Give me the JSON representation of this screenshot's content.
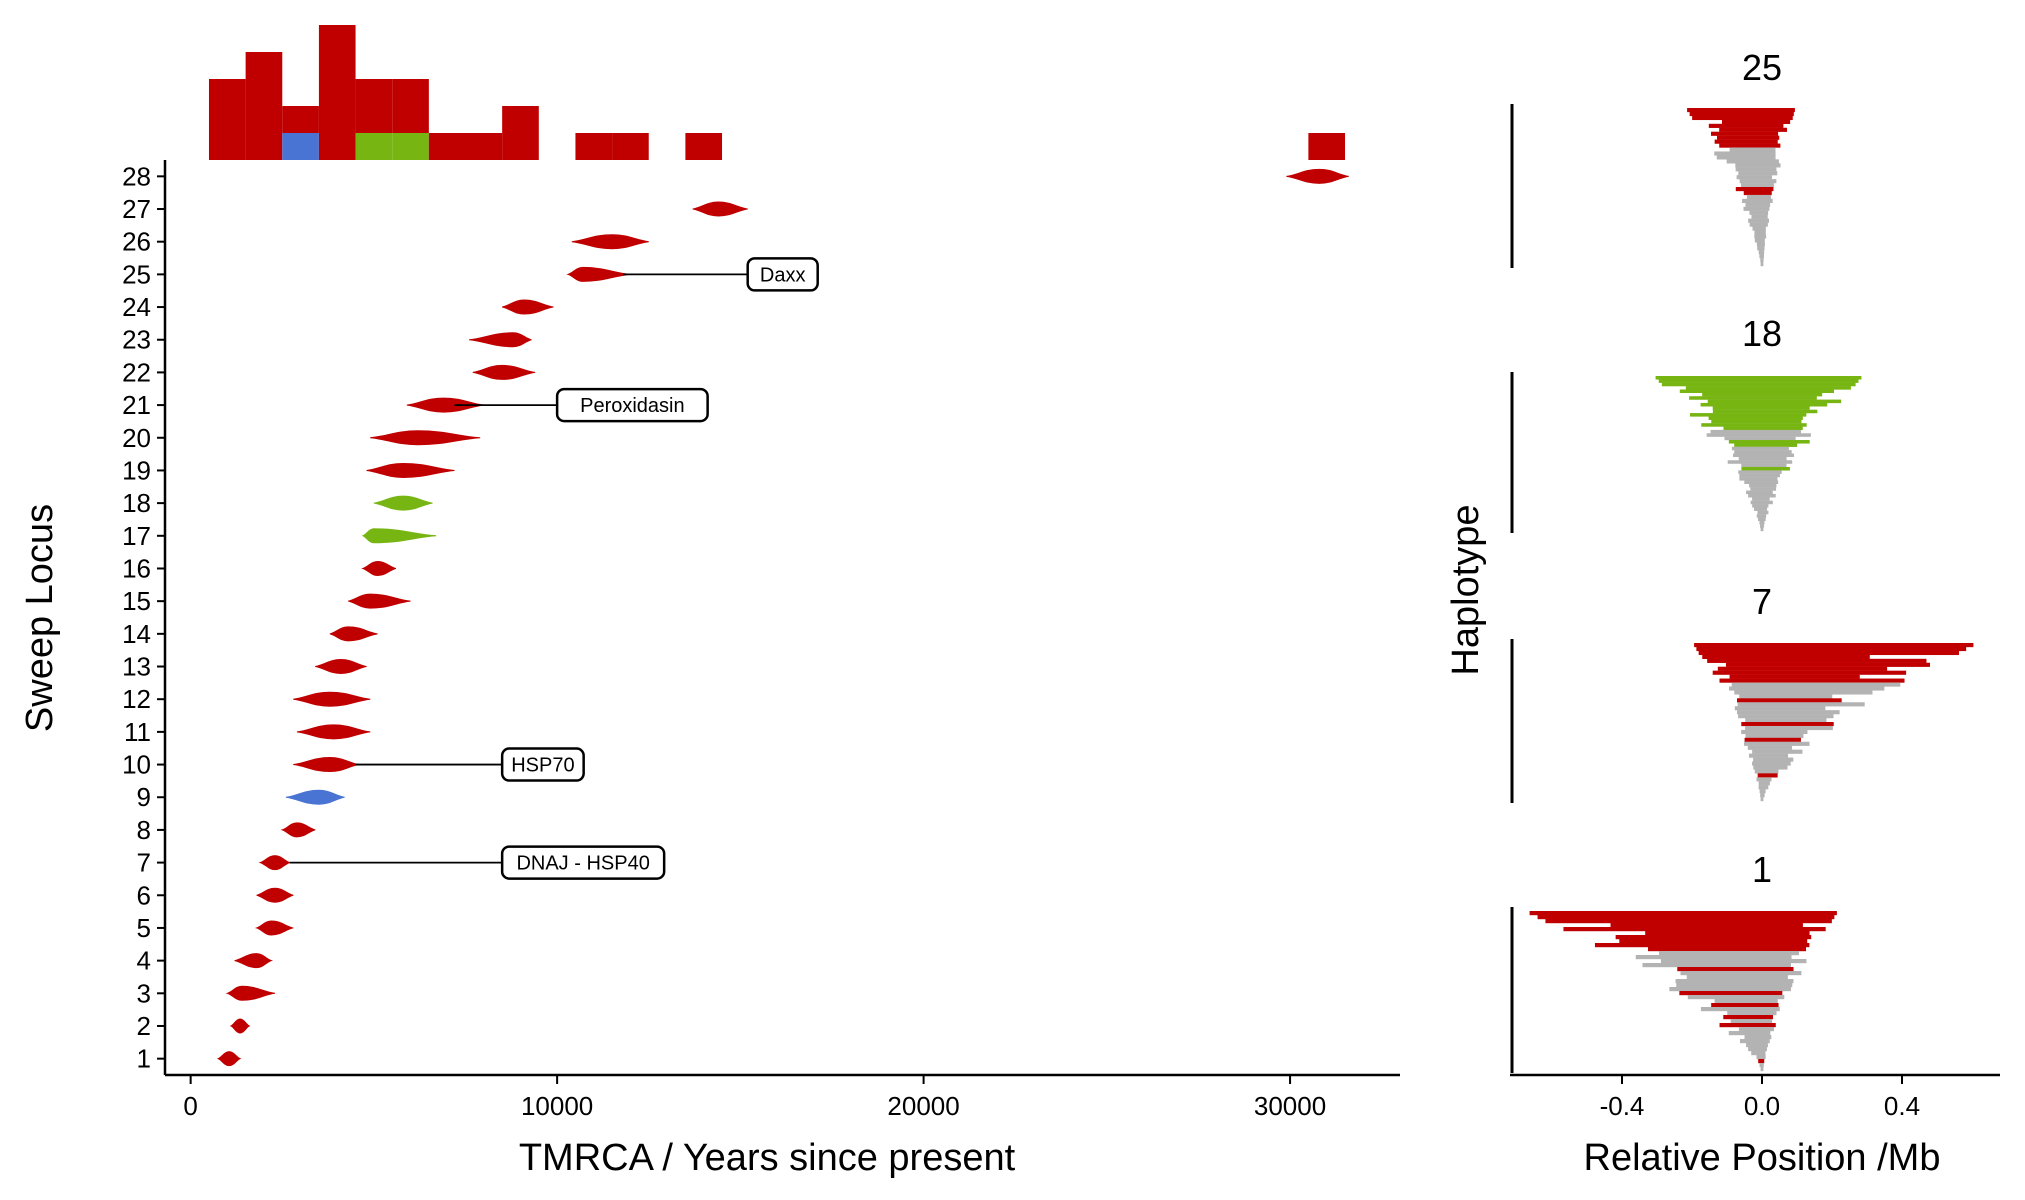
{
  "colors": {
    "red": "#c00000",
    "blue": "#4a74d4",
    "green": "#76b512",
    "grey": "#b3b3b3",
    "black": "#000000"
  },
  "chart_data": [
    {
      "type": "violin",
      "panel": "main",
      "xlabel": "TMRCA / Years since present",
      "ylabel": "Sweep Locus",
      "xlim": [
        -700,
        33000
      ],
      "ylim": [
        0.5,
        28.5
      ],
      "xticks": [
        0,
        10000,
        20000,
        30000
      ],
      "xtick_labels": [
        "0",
        "10000",
        "20000",
        "30000"
      ],
      "ytick_labels": [
        "1",
        "2",
        "3",
        "4",
        "5",
        "6",
        "7",
        "8",
        "9",
        "10",
        "11",
        "12",
        "13",
        "14",
        "15",
        "16",
        "17",
        "18",
        "19",
        "20",
        "21",
        "22",
        "23",
        "24",
        "25",
        "26",
        "27",
        "28"
      ],
      "grid": false,
      "loci": [
        {
          "locus": 1,
          "min": 750,
          "max": 1350,
          "peak": 1050,
          "color": "red"
        },
        {
          "locus": 2,
          "min": 1100,
          "max": 1600,
          "peak": 1350,
          "color": "red"
        },
        {
          "locus": 3,
          "min": 1000,
          "max": 2300,
          "peak": 1400,
          "color": "red"
        },
        {
          "locus": 4,
          "min": 1200,
          "max": 2200,
          "peak": 1800,
          "color": "red"
        },
        {
          "locus": 5,
          "min": 1800,
          "max": 2800,
          "peak": 2200,
          "color": "red"
        },
        {
          "locus": 6,
          "min": 1800,
          "max": 2800,
          "peak": 2300,
          "color": "red"
        },
        {
          "locus": 7,
          "min": 1900,
          "max": 2700,
          "peak": 2300,
          "color": "red"
        },
        {
          "locus": 8,
          "min": 2500,
          "max": 3400,
          "peak": 2900,
          "color": "red"
        },
        {
          "locus": 9,
          "min": 2600,
          "max": 4200,
          "peak": 3500,
          "color": "blue"
        },
        {
          "locus": 10,
          "min": 2800,
          "max": 4600,
          "peak": 3800,
          "color": "red"
        },
        {
          "locus": 11,
          "min": 2900,
          "max": 4900,
          "peak": 3900,
          "color": "red"
        },
        {
          "locus": 12,
          "min": 2800,
          "max": 4900,
          "peak": 3800,
          "color": "red"
        },
        {
          "locus": 13,
          "min": 3400,
          "max": 4800,
          "peak": 4100,
          "color": "red"
        },
        {
          "locus": 14,
          "min": 3800,
          "max": 5100,
          "peak": 4300,
          "color": "red"
        },
        {
          "locus": 15,
          "min": 4300,
          "max": 6000,
          "peak": 4900,
          "color": "red"
        },
        {
          "locus": 16,
          "min": 4700,
          "max": 5600,
          "peak": 5100,
          "color": "red"
        },
        {
          "locus": 17,
          "min": 4700,
          "max": 6700,
          "peak": 5000,
          "color": "green"
        },
        {
          "locus": 18,
          "min": 5000,
          "max": 6600,
          "peak": 5800,
          "color": "green"
        },
        {
          "locus": 19,
          "min": 4800,
          "max": 7200,
          "peak": 5800,
          "color": "red"
        },
        {
          "locus": 20,
          "min": 4900,
          "max": 7900,
          "peak": 6200,
          "color": "red"
        },
        {
          "locus": 21,
          "min": 5900,
          "max": 8000,
          "peak": 6900,
          "color": "red"
        },
        {
          "locus": 22,
          "min": 7700,
          "max": 9400,
          "peak": 8500,
          "color": "red"
        },
        {
          "locus": 23,
          "min": 7600,
          "max": 9300,
          "peak": 8800,
          "color": "red"
        },
        {
          "locus": 24,
          "min": 8500,
          "max": 9900,
          "peak": 9100,
          "color": "red"
        },
        {
          "locus": 25,
          "min": 10300,
          "max": 12000,
          "peak": 10700,
          "color": "red"
        },
        {
          "locus": 26,
          "min": 10400,
          "max": 12500,
          "peak": 11500,
          "color": "red"
        },
        {
          "locus": 27,
          "min": 13700,
          "max": 15200,
          "peak": 14400,
          "color": "red"
        },
        {
          "locus": 28,
          "min": 29900,
          "max": 31600,
          "peak": 30800,
          "color": "red"
        }
      ],
      "annotations": [
        {
          "text": "Daxx",
          "locus": 25,
          "x_from": 11800,
          "x_label": 15200
        },
        {
          "text": "Peroxidasin",
          "locus": 21,
          "x_from": 7200,
          "x_label": 10000
        },
        {
          "text": "HSP70",
          "locus": 10,
          "x_from": 4500,
          "x_label": 8500
        },
        {
          "text": "DNAJ - HSP40",
          "locus": 7,
          "x_from": 2700,
          "x_label": 8500
        }
      ]
    },
    {
      "type": "histogram",
      "panel": "top",
      "bin_width": 1000,
      "bins": [
        {
          "x0": 500,
          "count": 3,
          "color_counts": {
            "red": 3
          }
        },
        {
          "x0": 1500,
          "count": 4,
          "color_counts": {
            "red": 4
          }
        },
        {
          "x0": 2500,
          "count": 2,
          "color_counts": {
            "blue": 1,
            "red": 1
          }
        },
        {
          "x0": 3500,
          "count": 5,
          "color_counts": {
            "red": 5
          }
        },
        {
          "x0": 4500,
          "count": 3,
          "color_counts": {
            "green": 1,
            "red": 2
          }
        },
        {
          "x0": 5500,
          "count": 3,
          "color_counts": {
            "green": 1,
            "red": 2
          }
        },
        {
          "x0": 6500,
          "count": 1,
          "color_counts": {
            "red": 1
          }
        },
        {
          "x0": 7500,
          "count": 1,
          "color_counts": {
            "red": 1
          }
        },
        {
          "x0": 8500,
          "count": 2,
          "color_counts": {
            "red": 2
          }
        },
        {
          "x0": 10500,
          "count": 1,
          "color_counts": {
            "red": 1
          }
        },
        {
          "x0": 11500,
          "count": 1,
          "color_counts": {
            "red": 1
          }
        },
        {
          "x0": 13500,
          "count": 1,
          "color_counts": {
            "red": 1
          }
        },
        {
          "x0": 30500,
          "count": 1,
          "color_counts": {
            "red": 1
          }
        }
      ]
    },
    {
      "type": "haplotype_bars",
      "panel": "right",
      "xlabel": "Relative Position /Mb",
      "ylabel": "Haplotype",
      "xlim": [
        -0.72,
        0.68
      ],
      "xticks": [
        -0.4,
        0.0,
        0.4
      ],
      "xtick_labels": [
        "-0.4",
        "0.0",
        "0.4"
      ],
      "facets": [
        {
          "title": "25",
          "color": "red",
          "rows": 40,
          "min_left": -0.21,
          "max_right": 0.09
        },
        {
          "title": "18",
          "color": "green",
          "rows": 46,
          "min_left": -0.3,
          "max_right": 0.28
        },
        {
          "title": "7",
          "color": "red",
          "rows": 40,
          "min_left": -0.19,
          "max_right": 0.6
        },
        {
          "title": "1",
          "color": "red",
          "rows": 40,
          "min_left": -0.66,
          "max_right": 0.21
        }
      ]
    }
  ]
}
